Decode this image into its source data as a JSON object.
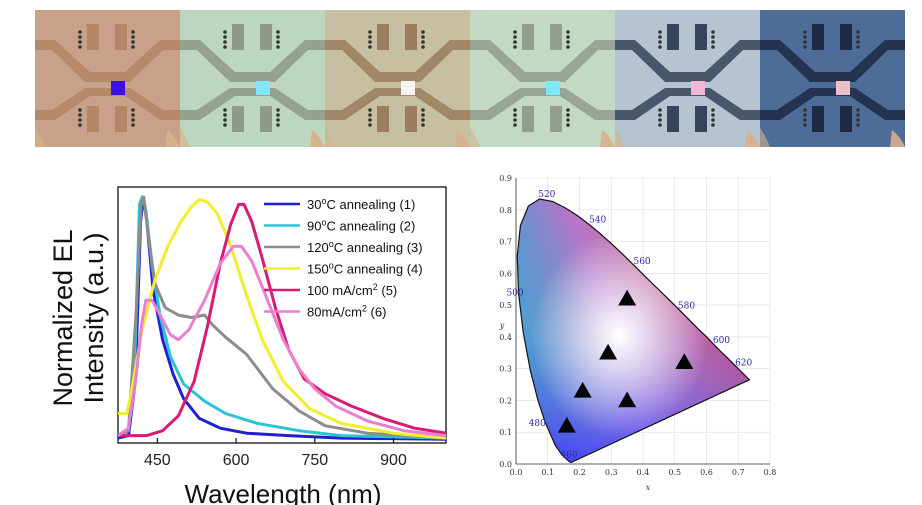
{
  "photos": [
    {
      "label": "",
      "pixel_color": "#3a10e8",
      "tint": "#c9a089",
      "trace": "#b48666"
    },
    {
      "label": "",
      "pixel_color": "#7fe7f7",
      "tint": "#bcd6bf",
      "trace": "#8f9a8a"
    },
    {
      "label": "",
      "pixel_color": "#f4f4f4",
      "tint": "#c6bfa2",
      "trace": "#9c7d5f"
    },
    {
      "label": "",
      "pixel_color": "#7fe7f7",
      "tint": "#c2d9c3",
      "trace": "#939d90"
    },
    {
      "label": "",
      "pixel_color": "#f2b6d2",
      "tint": "#b6c4d2",
      "trace": "#36445c"
    },
    {
      "label": "",
      "pixel_color": "#f0c0c8",
      "tint": "#4d6c98",
      "trace": "#1d2a44"
    }
  ],
  "chart_data": [
    {
      "type": "line",
      "title": "",
      "xlabel": "Wavelength (nm)",
      "ylabel_line1": "Normalized EL",
      "ylabel_line2": "Intensity (a.u.)",
      "xlim": [
        375,
        1000
      ],
      "ylim": [
        0,
        1.0
      ],
      "xticks": [
        450,
        600,
        750,
        900
      ],
      "xtick_labels": [
        "450",
        "600",
        "750",
        "900"
      ],
      "legend_position": "top-right",
      "series": [
        {
          "name_main": "30",
          "name_sup": "o",
          "name_rest": "C annealing (1)",
          "color": "#1f1fd6",
          "points": [
            [
              375,
              0.02
            ],
            [
              395,
              0.03
            ],
            [
              408,
              0.25
            ],
            [
              418,
              0.9
            ],
            [
              423,
              1.0
            ],
            [
              430,
              0.9
            ],
            [
              442,
              0.62
            ],
            [
              460,
              0.42
            ],
            [
              480,
              0.28
            ],
            [
              500,
              0.18
            ],
            [
              530,
              0.1
            ],
            [
              570,
              0.06
            ],
            [
              620,
              0.04
            ],
            [
              700,
              0.03
            ],
            [
              800,
              0.02
            ],
            [
              1000,
              0.015
            ]
          ]
        },
        {
          "name_main": " 90",
          "name_sup": "o",
          "name_rest": "C annealing (2)",
          "color": "#2bc3d3",
          "points": [
            [
              375,
              0.03
            ],
            [
              395,
              0.05
            ],
            [
              408,
              0.4
            ],
            [
              416,
              0.97
            ],
            [
              421,
              1.0
            ],
            [
              428,
              0.95
            ],
            [
              440,
              0.72
            ],
            [
              455,
              0.52
            ],
            [
              475,
              0.35
            ],
            [
              500,
              0.24
            ],
            [
              540,
              0.17
            ],
            [
              580,
              0.12
            ],
            [
              640,
              0.08
            ],
            [
              720,
              0.05
            ],
            [
              800,
              0.03
            ],
            [
              1000,
              0.02
            ]
          ]
        },
        {
          "name_main": "120",
          "name_sup": "o",
          "name_rest": "C annealing (3)",
          "color": "#8c8c8c",
          "points": [
            [
              375,
              0.03
            ],
            [
              395,
              0.05
            ],
            [
              410,
              0.55
            ],
            [
              419,
              0.97
            ],
            [
              424,
              1.0
            ],
            [
              432,
              0.86
            ],
            [
              445,
              0.65
            ],
            [
              465,
              0.55
            ],
            [
              490,
              0.52
            ],
            [
              515,
              0.51
            ],
            [
              540,
              0.52
            ],
            [
              555,
              0.48
            ],
            [
              580,
              0.43
            ],
            [
              620,
              0.36
            ],
            [
              670,
              0.22
            ],
            [
              720,
              0.13
            ],
            [
              770,
              0.07
            ],
            [
              850,
              0.04
            ],
            [
              1000,
              0.02
            ]
          ]
        },
        {
          "name_main": "150",
          "name_sup": "o",
          "name_rest": "C annealing (4)",
          "color": "#f2ee2b",
          "points": [
            [
              375,
              0.12
            ],
            [
              392,
              0.12
            ],
            [
              400,
              0.2
            ],
            [
              420,
              0.45
            ],
            [
              445,
              0.66
            ],
            [
              470,
              0.8
            ],
            [
              495,
              0.9
            ],
            [
              515,
              0.96
            ],
            [
              530,
              0.99
            ],
            [
              545,
              0.98
            ],
            [
              565,
              0.93
            ],
            [
              590,
              0.8
            ],
            [
              620,
              0.6
            ],
            [
              650,
              0.42
            ],
            [
              690,
              0.25
            ],
            [
              740,
              0.14
            ],
            [
              800,
              0.08
            ],
            [
              900,
              0.04
            ],
            [
              1000,
              0.02
            ]
          ]
        },
        {
          "name_main": "100 mA/cm",
          "name_sup": "2",
          "name_rest": " (5)",
          "color": "#d81b75",
          "points": [
            [
              375,
              0.03
            ],
            [
              430,
              0.03
            ],
            [
              460,
              0.05
            ],
            [
              490,
              0.11
            ],
            [
              520,
              0.25
            ],
            [
              545,
              0.47
            ],
            [
              570,
              0.73
            ],
            [
              590,
              0.89
            ],
            [
              605,
              0.97
            ],
            [
              615,
              0.97
            ],
            [
              630,
              0.9
            ],
            [
              650,
              0.75
            ],
            [
              675,
              0.55
            ],
            [
              700,
              0.38
            ],
            [
              730,
              0.26
            ],
            [
              770,
              0.2
            ],
            [
              820,
              0.15
            ],
            [
              880,
              0.1
            ],
            [
              940,
              0.06
            ],
            [
              1000,
              0.04
            ]
          ]
        },
        {
          "name_main": "80mA/cm",
          "name_sup": "2",
          "name_rest": " (6)",
          "color": "#ea7fd0",
          "points": [
            [
              375,
              0.03
            ],
            [
              395,
              0.06
            ],
            [
              410,
              0.28
            ],
            [
              420,
              0.48
            ],
            [
              428,
              0.58
            ],
            [
              440,
              0.58
            ],
            [
              455,
              0.52
            ],
            [
              475,
              0.44
            ],
            [
              490,
              0.42
            ],
            [
              510,
              0.46
            ],
            [
              540,
              0.58
            ],
            [
              570,
              0.73
            ],
            [
              595,
              0.8
            ],
            [
              610,
              0.8
            ],
            [
              630,
              0.74
            ],
            [
              660,
              0.58
            ],
            [
              690,
              0.42
            ],
            [
              720,
              0.3
            ],
            [
              750,
              0.22
            ],
            [
              790,
              0.15
            ],
            [
              850,
              0.09
            ],
            [
              920,
              0.05
            ],
            [
              1000,
              0.03
            ]
          ]
        }
      ]
    },
    {
      "type": "scatter",
      "title": "",
      "xlabel": "x",
      "ylabel": "y",
      "xlim": [
        0.0,
        0.8
      ],
      "ylim": [
        0.0,
        0.9
      ],
      "xtick_labels": [
        "0.0",
        "0.1",
        "0.2",
        "0.3",
        "0.4",
        "0.5",
        "0.6",
        "0.7",
        "0.8"
      ],
      "ytick_labels": [
        "0.0",
        "0.1",
        "0.2",
        "0.3",
        "0.4",
        "0.5",
        "0.6",
        "0.7",
        "0.8",
        "0.9"
      ],
      "wavelength_labels": [
        {
          "text": "520",
          "x": 0.07,
          "y": 0.84
        },
        {
          "text": "540",
          "x": 0.23,
          "y": 0.76
        },
        {
          "text": "560",
          "x": 0.37,
          "y": 0.63
        },
        {
          "text": "580",
          "x": 0.51,
          "y": 0.49
        },
        {
          "text": "600",
          "x": 0.62,
          "y": 0.38
        },
        {
          "text": "620",
          "x": 0.69,
          "y": 0.31
        },
        {
          "text": "500",
          "x": -0.03,
          "y": 0.53
        },
        {
          "text": "480",
          "x": 0.04,
          "y": 0.12
        },
        {
          "text": "460",
          "x": 0.14,
          "y": 0.02
        }
      ],
      "points": [
        {
          "x": 0.16,
          "y": 0.12
        },
        {
          "x": 0.21,
          "y": 0.23
        },
        {
          "x": 0.29,
          "y": 0.35
        },
        {
          "x": 0.35,
          "y": 0.2
        },
        {
          "x": 0.35,
          "y": 0.52
        },
        {
          "x": 0.53,
          "y": 0.32
        }
      ]
    }
  ]
}
